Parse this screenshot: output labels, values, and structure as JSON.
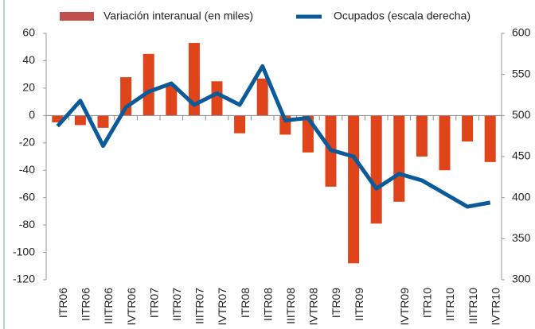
{
  "chart_data": {
    "type": "bar-line",
    "categories": [
      "ITR06",
      "IITR06",
      "IIITR06",
      "IVTR06",
      "ITR07",
      "IITR07",
      "IIITR07",
      "IVTR07",
      "ITR08",
      "IITR08",
      "IIITR08",
      "IVTR08",
      "ITR09",
      "IITR09",
      null,
      "IVTR09",
      "ITR10",
      "IITR10",
      "IIITR10",
      "IVTR10"
    ],
    "series": [
      {
        "name": "Variación interanual (en miles)",
        "color": "#e0441a",
        "type": "bar",
        "values": [
          -5,
          -7,
          -9,
          28,
          45,
          22,
          53,
          25,
          -13,
          27,
          -14,
          -27,
          -52,
          -108,
          -79,
          -63,
          -30,
          -40,
          -19,
          -34
        ]
      },
      {
        "name": "Ocupados (escala derecha)",
        "color": "#0b5a9a",
        "type": "line",
        "axis": "y2",
        "values": [
          487,
          518,
          463,
          510,
          529,
          539,
          513,
          527,
          513,
          560,
          494,
          497,
          458,
          450,
          411,
          429,
          421,
          405,
          389,
          394
        ]
      }
    ],
    "ylim": [
      -120,
      60
    ],
    "yticks": [
      -120,
      -100,
      -80,
      -60,
      -40,
      -20,
      0,
      20,
      40,
      60
    ],
    "y2lim": [
      300,
      600
    ],
    "y2ticks": [
      300,
      350,
      400,
      450,
      500,
      550,
      600
    ],
    "legend": "top"
  }
}
